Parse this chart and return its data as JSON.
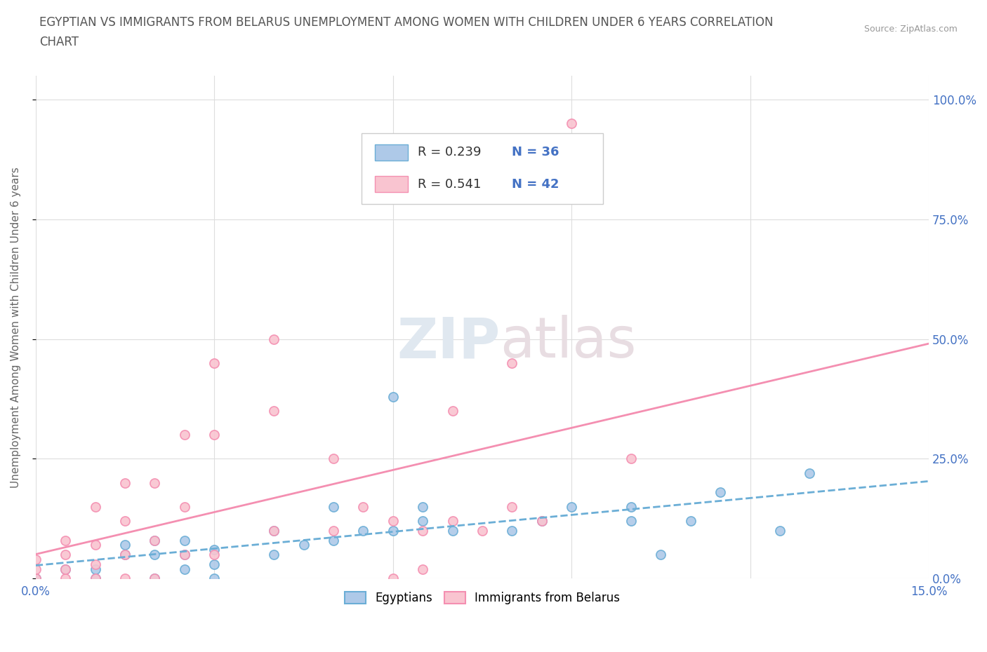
{
  "title_line1": "EGYPTIAN VS IMMIGRANTS FROM BELARUS UNEMPLOYMENT AMONG WOMEN WITH CHILDREN UNDER 6 YEARS CORRELATION",
  "title_line2": "CHART",
  "source": "Source: ZipAtlas.com",
  "ylabel": "Unemployment Among Women with Children Under 6 years",
  "xlim": [
    0.0,
    0.15
  ],
  "ylim": [
    0.0,
    1.05
  ],
  "xticks": [
    0.0,
    0.03,
    0.06,
    0.09,
    0.12,
    0.15
  ],
  "xtick_labels": [
    "0.0%",
    "",
    "",
    "",
    "",
    "15.0%"
  ],
  "yticks": [
    0.0,
    0.25,
    0.5,
    0.75,
    1.0
  ],
  "ytick_labels": [
    "0.0%",
    "25.0%",
    "50.0%",
    "75.0%",
    "100.0%"
  ],
  "egyptian_color": "#6baed6",
  "egyptian_color_fill": "#aec9e8",
  "belarus_color": "#f48fb1",
  "belarus_color_fill": "#f9c4d0",
  "egyptian_R": 0.239,
  "egyptian_N": 36,
  "belarus_R": 0.541,
  "belarus_N": 42,
  "egyptian_scatter_x": [
    0.0,
    0.005,
    0.01,
    0.01,
    0.015,
    0.015,
    0.02,
    0.02,
    0.02,
    0.025,
    0.025,
    0.025,
    0.03,
    0.03,
    0.03,
    0.04,
    0.04,
    0.045,
    0.05,
    0.05,
    0.055,
    0.06,
    0.06,
    0.065,
    0.065,
    0.07,
    0.08,
    0.085,
    0.09,
    0.1,
    0.1,
    0.105,
    0.11,
    0.115,
    0.125,
    0.13
  ],
  "egyptian_scatter_y": [
    0.0,
    0.02,
    0.0,
    0.02,
    0.05,
    0.07,
    0.0,
    0.05,
    0.08,
    0.02,
    0.05,
    0.08,
    0.0,
    0.03,
    0.06,
    0.05,
    0.1,
    0.07,
    0.08,
    0.15,
    0.1,
    0.1,
    0.38,
    0.12,
    0.15,
    0.1,
    0.1,
    0.12,
    0.15,
    0.12,
    0.15,
    0.05,
    0.12,
    0.18,
    0.1,
    0.22
  ],
  "belarus_scatter_x": [
    0.0,
    0.0,
    0.0,
    0.005,
    0.005,
    0.005,
    0.005,
    0.01,
    0.01,
    0.01,
    0.01,
    0.015,
    0.015,
    0.015,
    0.015,
    0.02,
    0.02,
    0.02,
    0.025,
    0.025,
    0.025,
    0.03,
    0.03,
    0.03,
    0.04,
    0.04,
    0.04,
    0.05,
    0.05,
    0.055,
    0.06,
    0.06,
    0.065,
    0.065,
    0.07,
    0.07,
    0.075,
    0.08,
    0.08,
    0.085,
    0.09,
    0.1
  ],
  "belarus_scatter_y": [
    0.0,
    0.02,
    0.04,
    0.0,
    0.02,
    0.05,
    0.08,
    0.0,
    0.03,
    0.07,
    0.15,
    0.0,
    0.05,
    0.12,
    0.2,
    0.0,
    0.08,
    0.2,
    0.05,
    0.15,
    0.3,
    0.05,
    0.3,
    0.45,
    0.1,
    0.35,
    0.5,
    0.1,
    0.25,
    0.15,
    0.0,
    0.12,
    0.1,
    0.02,
    0.12,
    0.35,
    0.1,
    0.15,
    0.45,
    0.12,
    0.95,
    0.25
  ],
  "legend_entries": [
    "Egyptians",
    "Immigrants from Belarus"
  ],
  "watermark_zip": "ZIP",
  "watermark_atlas": "atlas",
  "background_color": "#ffffff",
  "grid_color": "#dddddd",
  "title_color": "#555555",
  "axis_label_color": "#666666",
  "tick_label_color": "#4472c4",
  "source_color": "#999999"
}
